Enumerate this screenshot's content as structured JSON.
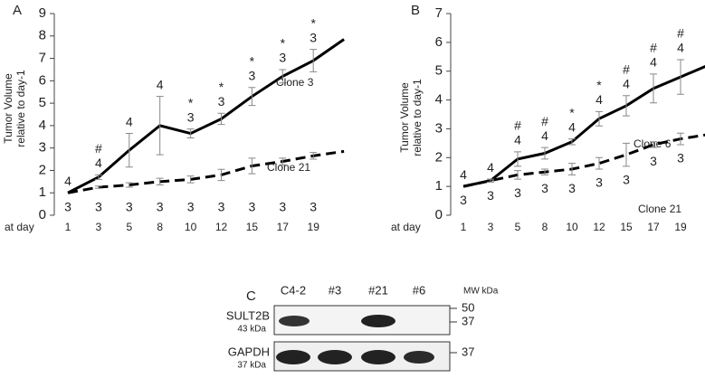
{
  "chart_data": [
    {
      "type": "line",
      "panel": "A",
      "y_label": [
        "Tumor Volume",
        "relative to day-1"
      ],
      "x_label": "at day",
      "categories": [
        "1",
        "3",
        "5",
        "8",
        "10",
        "12",
        "15",
        "17",
        "19",
        null
      ],
      "ylim": [
        0,
        9
      ],
      "yticks": [
        0,
        1,
        2,
        3,
        4,
        5,
        6,
        7,
        8,
        9
      ],
      "series": [
        {
          "name": "Clone 3",
          "color": "#000000",
          "style": "solid",
          "values": [
            1.0,
            1.7,
            2.9,
            4.0,
            3.65,
            4.3,
            5.3,
            6.2,
            6.9,
            7.85
          ],
          "errors": [
            0,
            0.1,
            0.75,
            1.3,
            0.2,
            0.25,
            0.4,
            0.3,
            0.5,
            null
          ],
          "n_labels": [
            "4",
            "4",
            "4",
            "4",
            "3",
            "3",
            "3",
            "3",
            "3",
            null
          ],
          "sig_labels": [
            null,
            "#",
            null,
            null,
            "*",
            "*",
            "*",
            "*",
            "*",
            null
          ]
        },
        {
          "name": "Clone 21",
          "color": "#000000",
          "style": "dashed",
          "values": [
            1.0,
            1.25,
            1.35,
            1.5,
            1.6,
            1.8,
            2.2,
            2.4,
            2.65,
            2.85
          ],
          "errors": [
            0,
            0.05,
            0.1,
            0.15,
            0.15,
            0.25,
            0.35,
            0.15,
            0.15,
            null
          ],
          "n_labels": [
            "3",
            "3",
            "3",
            "3",
            "3",
            "3",
            "3",
            "3",
            "3",
            null
          ]
        }
      ]
    },
    {
      "type": "line",
      "panel": "B",
      "y_label": [
        "Tumor Volume",
        "relative to day-1"
      ],
      "x_label": "at day",
      "categories": [
        "1",
        "3",
        "5",
        "8",
        "10",
        "12",
        "15",
        "17",
        "19",
        null
      ],
      "ylim": [
        0,
        7
      ],
      "yticks": [
        0,
        1,
        2,
        3,
        4,
        5,
        6,
        7
      ],
      "series": [
        {
          "name": "Clone 6",
          "color": "#000000",
          "style": "solid",
          "values": [
            1.0,
            1.2,
            1.95,
            2.15,
            2.55,
            3.35,
            3.8,
            4.4,
            4.8,
            5.2
          ],
          "errors": [
            0,
            0.05,
            0.25,
            0.2,
            0.1,
            0.25,
            0.35,
            0.5,
            0.6,
            null
          ],
          "n_labels": [
            "4",
            "4",
            "4",
            "4",
            "4",
            "4",
            "4",
            "4",
            "4",
            null
          ],
          "sig_labels": [
            null,
            null,
            "#",
            "#",
            "*",
            "*",
            "#",
            "#",
            "#",
            null
          ]
        },
        {
          "name": "Clone 21",
          "color": "#000000",
          "style": "dashed",
          "values": [
            1.0,
            1.2,
            1.4,
            1.5,
            1.6,
            1.8,
            2.1,
            2.45,
            2.65,
            2.8
          ],
          "errors": [
            0,
            0.05,
            0.15,
            0.1,
            0.2,
            0.2,
            0.4,
            0.1,
            0.2,
            null
          ],
          "n_labels": [
            "3",
            "3",
            "3",
            "3",
            "3",
            "3",
            "3",
            "3",
            "3",
            null
          ]
        }
      ]
    }
  ],
  "blot": {
    "panel": "C",
    "lanes": [
      "C4-2",
      "#3",
      "#21",
      "#6"
    ],
    "mw_header": "MW kDa",
    "rows": [
      {
        "label": "SULT2B",
        "size": "43 kDa",
        "markers": [
          "50",
          "37"
        ]
      },
      {
        "label": "GAPDH",
        "size": "37 kDa",
        "markers": [
          "37"
        ]
      }
    ]
  }
}
